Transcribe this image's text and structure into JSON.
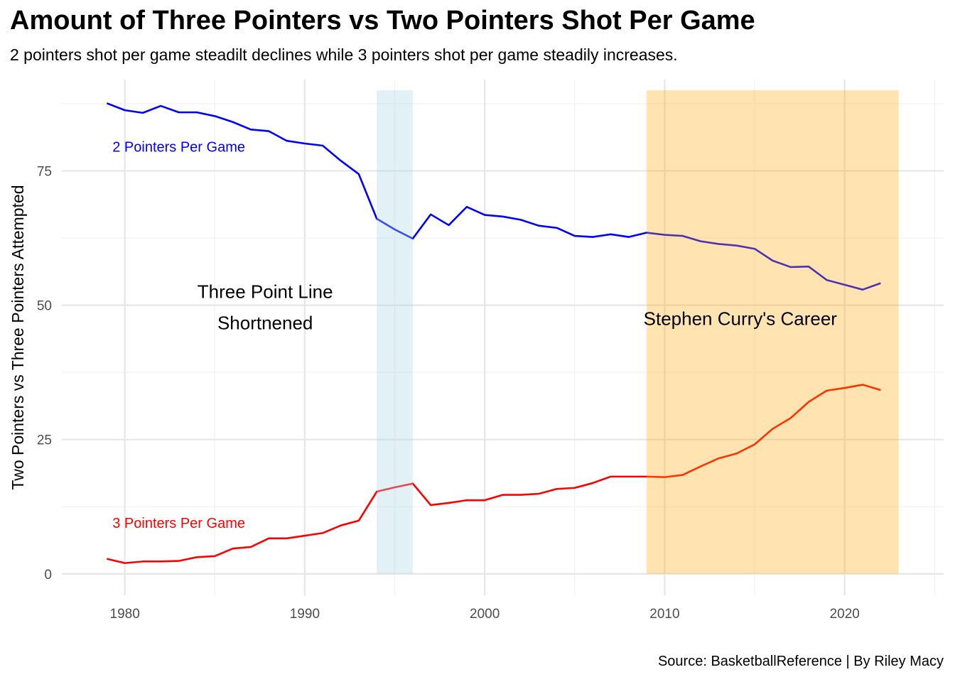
{
  "title": "Amount of Three Pointers vs Two Pointers Shot Per Game",
  "subtitle": "2 pointers shot per game steadilt declines while 3 pointers shot per game steadily increases.",
  "caption": "Source: BasketballReference | By Riley Macy",
  "chart_data": {
    "type": "line",
    "ylabel": "Two Pointers vs Three Pointers Attempted",
    "xlabel": "",
    "xlim": [
      1976.5,
      2025.5
    ],
    "ylim": [
      -4,
      92
    ],
    "x_ticks": [
      1980,
      1990,
      2000,
      2010,
      2020
    ],
    "y_ticks": [
      0,
      25,
      50,
      75
    ],
    "grid": true,
    "x": [
      1979,
      1980,
      1981,
      1982,
      1983,
      1984,
      1985,
      1986,
      1987,
      1988,
      1989,
      1990,
      1991,
      1992,
      1993,
      1994,
      1995,
      1996,
      1997,
      1998,
      1999,
      2000,
      2001,
      2002,
      2003,
      2004,
      2005,
      2006,
      2007,
      2008,
      2009,
      2010,
      2011,
      2012,
      2013,
      2014,
      2015,
      2016,
      2017,
      2018,
      2019,
      2020,
      2021,
      2022
    ],
    "series": [
      {
        "name": "2 Pointers Per Game",
        "color": "#0000ff",
        "values": [
          87.6,
          86.3,
          85.8,
          87.1,
          85.9,
          85.9,
          85.2,
          84.1,
          82.7,
          82.4,
          80.6,
          80.1,
          79.7,
          76.9,
          74.4,
          66.1,
          64.1,
          62.4,
          66.9,
          64.9,
          68.3,
          66.8,
          66.5,
          65.9,
          64.8,
          64.4,
          62.9,
          62.7,
          63.2,
          62.7,
          63.5,
          63.1,
          62.9,
          61.9,
          61.4,
          61.1,
          60.5,
          58.3,
          57.1,
          57.2,
          54.7,
          53.8,
          52.9,
          54.1
        ]
      },
      {
        "name": "3 Pointers Per Game",
        "color": "#ff0000",
        "values": [
          2.8,
          2.0,
          2.3,
          2.3,
          2.4,
          3.1,
          3.3,
          4.7,
          5.0,
          6.6,
          6.6,
          7.1,
          7.6,
          9.0,
          9.9,
          15.3,
          16.1,
          16.8,
          12.8,
          13.2,
          13.7,
          13.7,
          14.7,
          14.7,
          14.9,
          15.8,
          16.0,
          16.9,
          18.1,
          18.1,
          18.1,
          18.0,
          18.4,
          20.0,
          21.5,
          22.4,
          24.1,
          27.0,
          29.0,
          32.0,
          34.1,
          34.6,
          35.2,
          34.2
        ]
      }
    ],
    "shaded_regions": [
      {
        "x0": 1994,
        "x1": 1996,
        "color": "#add8e6",
        "opacity": 0.35,
        "label": "Three Point Line Shortnened"
      },
      {
        "x0": 2009,
        "x1": 2023,
        "color": "#ffa500",
        "opacity": 0.3,
        "label": "Stephen Curry's Career"
      }
    ],
    "annotations": [
      {
        "text": "Three Point Line",
        "x": 1987.8,
        "y": 52.5
      },
      {
        "text": "Shortnened",
        "x": 1987.8,
        "y": 46.7
      },
      {
        "text": "Stephen Curry's Career",
        "x": 2014.2,
        "y": 47.5
      }
    ],
    "series_labels": [
      {
        "text": "2 Pointers Per Game",
        "x": 1983.0,
        "y": 79.5,
        "color": "#0000ff"
      },
      {
        "text": "3 Pointers Per Game",
        "x": 1983.0,
        "y": 9.5,
        "color": "#ff0000"
      }
    ]
  }
}
